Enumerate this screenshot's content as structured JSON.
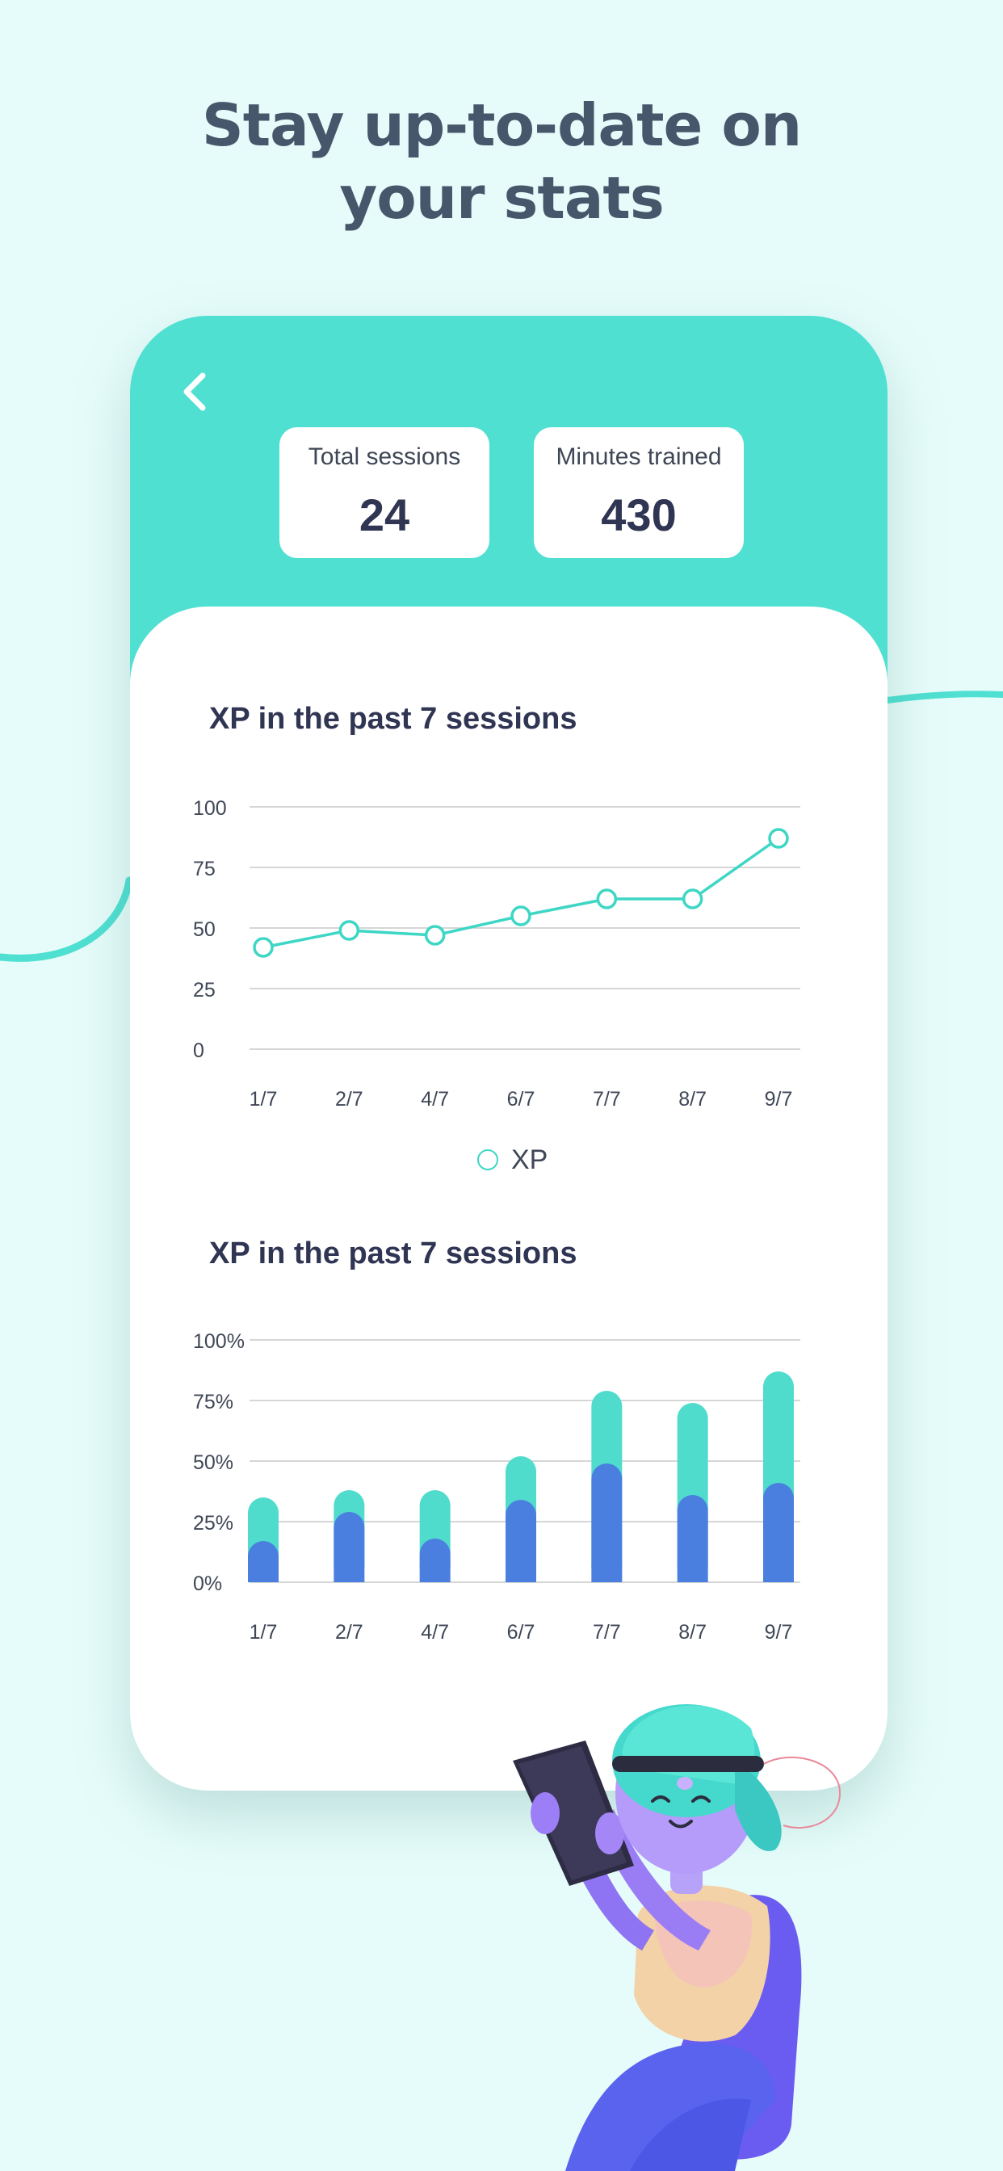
{
  "headline": {
    "line1": "Stay up-to-date on",
    "line2": "your stats"
  },
  "app": {
    "back_icon": "chevron-left-icon",
    "stats": {
      "total_sessions": {
        "label": "Total sessions",
        "value": "24"
      },
      "minutes_trained": {
        "label": "Minutes trained",
        "value": "430"
      }
    }
  },
  "colors": {
    "page_background": "#e6fcfa",
    "header_teal": "#50e0d2",
    "line_teal": "#3ed6c4",
    "bar_blue": "#4a7fe0",
    "bar_teal": "#50dccd",
    "text_dark": "#2f3552",
    "headline": "#47576b"
  },
  "chart_data": [
    {
      "type": "line",
      "title": "XP in the past 7 sessions",
      "categories": [
        "1/7",
        "2/7",
        "4/7",
        "6/7",
        "7/7",
        "8/7",
        "9/7"
      ],
      "series": [
        {
          "name": "XP",
          "values": [
            42,
            49,
            47,
            55,
            62,
            62,
            87
          ]
        }
      ],
      "yticks": [
        "0",
        "25",
        "50",
        "75",
        "100"
      ],
      "ylim": [
        0,
        100
      ],
      "grid": true,
      "legend": "bottom-center"
    },
    {
      "type": "bar",
      "stacked": true,
      "title": "XP in the past 7 sessions",
      "categories": [
        "1/7",
        "2/7",
        "4/7",
        "6/7",
        "7/7",
        "8/7",
        "9/7"
      ],
      "series": [
        {
          "values": [
            17,
            29,
            18,
            34,
            49,
            36,
            41
          ]
        },
        {
          "values": [
            18,
            9,
            20,
            18,
            30,
            38,
            46
          ]
        }
      ],
      "yticks": [
        "0%",
        "25%",
        "50%",
        "75%",
        "100%"
      ],
      "ylim": [
        0,
        100
      ],
      "grid": true
    }
  ]
}
